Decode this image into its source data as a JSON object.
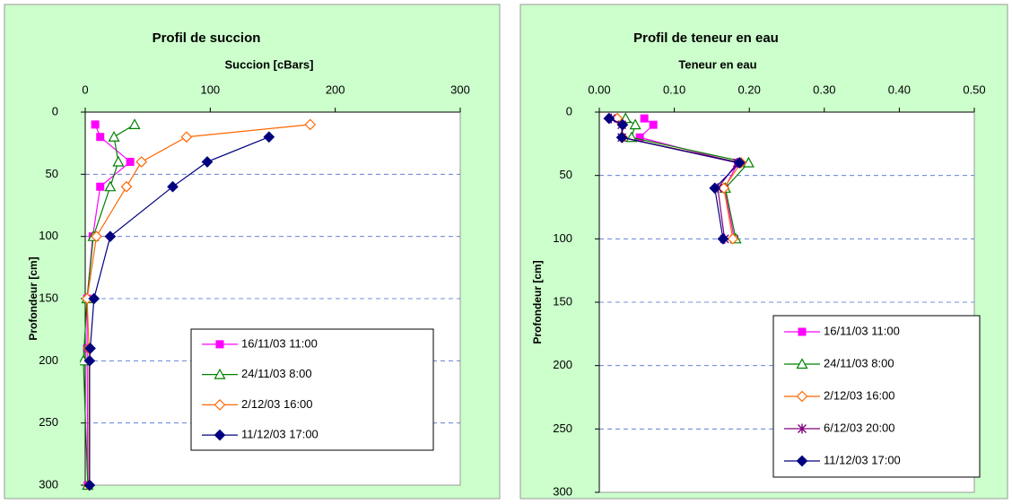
{
  "chart_data": [
    {
      "type": "line",
      "title": "Profil de succion",
      "x_label": "Succion [cBars]",
      "y_label": "Profondeur [cm]",
      "xlim": [
        0,
        300
      ],
      "xticks": [
        0,
        100,
        200,
        300
      ],
      "ylim": [
        0,
        300
      ],
      "yticks": [
        0,
        50,
        100,
        150,
        200,
        250,
        300
      ],
      "y_inverted": true,
      "x_axis_position": "top",
      "grid": true,
      "background": "#ccffcc",
      "series": [
        {
          "name": "16/11/03 11:00",
          "color": "#ff00ff",
          "marker": "square",
          "x": [
            8,
            12,
            36,
            12,
            6,
            1.5,
            1.5,
            2
          ],
          "values": [
            10,
            20,
            40,
            60,
            100,
            150,
            190,
            300
          ]
        },
        {
          "name": "24/11/03 8:00",
          "color": "#008000",
          "marker": "triangle",
          "x": [
            39.5,
            23,
            26.5,
            20,
            6.5,
            1.5,
            -1.5,
            2
          ],
          "values": [
            10,
            20,
            40,
            60,
            100,
            150,
            200,
            300
          ]
        },
        {
          "name": "2/12/03 16:00",
          "color": "#ff6600",
          "marker": "diamond-open",
          "x": [
            180,
            81,
            45,
            33,
            9,
            1.5,
            3,
            3
          ],
          "values": [
            10,
            20,
            40,
            60,
            100,
            150,
            190,
            300
          ]
        },
        {
          "name": "11/12/03 17:00",
          "color": "#000080",
          "marker": "diamond",
          "x": [
            147,
            97.6,
            70,
            20,
            7,
            4,
            3.5,
            3.5
          ],
          "values": [
            20,
            40,
            60,
            100,
            150,
            190,
            200,
            300
          ]
        }
      ]
    },
    {
      "type": "line",
      "title": "Profil de teneur en eau",
      "x_label": "Teneur en eau",
      "y_label": "Profondeur [cm]",
      "xlim": [
        0,
        0.5
      ],
      "xticks": [
        {
          "value": 0,
          "label": "0.00"
        },
        {
          "value": 0.1,
          "label": "0.10"
        },
        {
          "value": 0.2,
          "label": "0.20"
        },
        {
          "value": 0.3,
          "label": "0.30"
        },
        {
          "value": 0.4,
          "label": "0.40"
        },
        {
          "value": 0.5,
          "label": "0.50"
        }
      ],
      "ylim": [
        0,
        300
      ],
      "yticks": [
        0,
        50,
        100,
        150,
        200,
        250,
        300
      ],
      "y_inverted": true,
      "x_axis_position": "top",
      "grid": true,
      "background": "#ccffcc",
      "series": [
        {
          "name": "16/11/03 11:00",
          "color": "#ff00ff",
          "marker": "square",
          "x": [
            0.06,
            0.072,
            0.054,
            0.185,
            0.167,
            0.18
          ],
          "values": [
            5,
            10,
            20,
            40,
            60,
            100
          ]
        },
        {
          "name": "24/11/03 8:00",
          "color": "#008000",
          "marker": "triangle",
          "x": [
            0.035,
            0.048,
            0.043,
            0.199,
            0.168,
            0.182
          ],
          "values": [
            5,
            10,
            20,
            40,
            60,
            100
          ]
        },
        {
          "name": "2/12/03 16:00",
          "color": "#ff6600",
          "marker": "diamond-open",
          "x": [
            0.024,
            0.031,
            0.031,
            0.189,
            0.166,
            0.178
          ],
          "values": [
            5,
            10,
            20,
            40,
            60,
            100
          ]
        },
        {
          "name": "6/12/03 20:00",
          "color": "#800080",
          "marker": "star",
          "x": [
            0.016,
            0.03,
            0.03,
            0.184,
            0.158,
            0.167
          ],
          "values": [
            5,
            10,
            20,
            40,
            60,
            100
          ]
        },
        {
          "name": "11/12/03 17:00",
          "color": "#000080",
          "marker": "diamond",
          "x": [
            0.013,
            0.031,
            0.03,
            0.187,
            0.154,
            0.165
          ],
          "values": [
            5,
            10,
            20,
            40,
            60,
            100
          ]
        }
      ]
    }
  ]
}
